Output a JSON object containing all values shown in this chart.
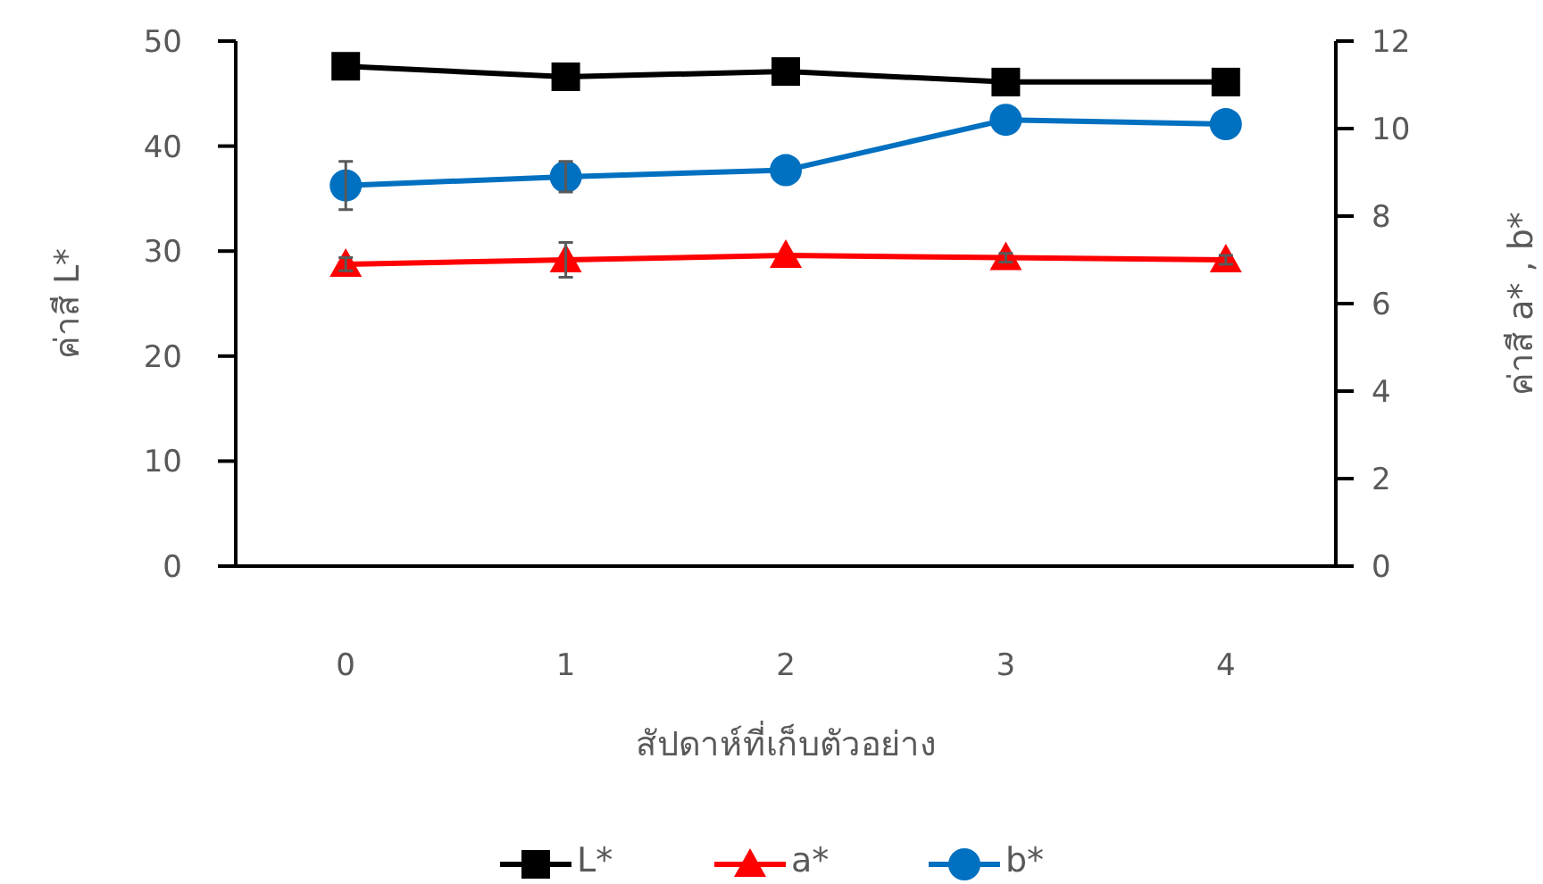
{
  "chart_data": {
    "type": "line",
    "xlabel": "สัปดาห์ที่เก็บตัวอย่าง",
    "ylabel": "ค่าสี L*",
    "y2label": "ค่าสี a* , b*",
    "categories": [
      "0",
      "1",
      "2",
      "3",
      "4"
    ],
    "ylim": [
      0,
      50
    ],
    "yticks": [
      0,
      10,
      20,
      30,
      40,
      50
    ],
    "y2lim": [
      0,
      12
    ],
    "y2ticks": [
      0,
      2,
      4,
      6,
      8,
      10,
      12
    ],
    "grid": false,
    "legend": "bottom",
    "series": [
      {
        "name": "L*",
        "color": "#000000",
        "marker": "square",
        "values": [
          47.6,
          46.6,
          47.1,
          46.1,
          46.1
        ]
      },
      {
        "name": "a*",
        "color": "#ff0000",
        "marker": "triangle",
        "axis": "y2",
        "values": [
          6.9,
          7.0,
          7.1,
          7.05,
          7.0
        ],
        "errors": [
          0.15,
          0.4,
          null,
          0.1,
          0.1
        ]
      },
      {
        "name": "b*",
        "color": "#0070c0",
        "marker": "circle",
        "axis": "y2",
        "values": [
          8.7,
          8.9,
          9.05,
          10.2,
          10.1
        ],
        "errors": [
          0.55,
          0.35,
          null,
          null,
          null
        ]
      }
    ]
  }
}
